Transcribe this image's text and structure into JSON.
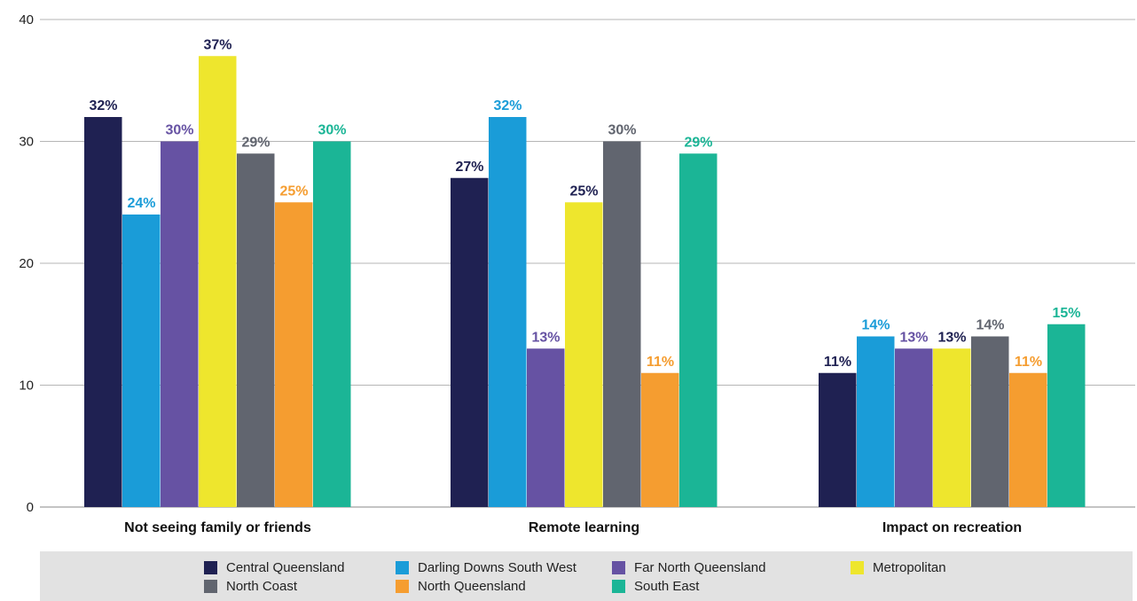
{
  "chart_data": {
    "type": "bar",
    "categories": [
      "Not seeing family or friends",
      "Remote learning",
      "Impact on recreation"
    ],
    "ylim": [
      0,
      40
    ],
    "yticks": [
      0,
      10,
      20,
      30,
      40
    ],
    "grid": true,
    "legend_position": "bottom",
    "value_suffix": "%",
    "series": [
      {
        "name": "Central Queensland",
        "color": "#1f2152",
        "values": [
          32,
          27,
          11
        ]
      },
      {
        "name": "Darling Downs South West",
        "color": "#1a9cd8",
        "values": [
          24,
          32,
          14
        ]
      },
      {
        "name": "Far North Queensland",
        "color": "#6652a3",
        "values": [
          30,
          13,
          13
        ]
      },
      {
        "name": "Metropolitan",
        "color": "#eee62d",
        "values": [
          37,
          25,
          13
        ]
      },
      {
        "name": "North Coast",
        "color": "#61656f",
        "values": [
          29,
          30,
          14
        ]
      },
      {
        "name": "North Queensland",
        "color": "#f59d30",
        "values": [
          25,
          11,
          11
        ]
      },
      {
        "name": "South East",
        "color": "#1bb596",
        "values": [
          30,
          29,
          15
        ]
      }
    ],
    "label_colors": [
      "#1f2152",
      "#1a9cd8",
      "#6652a3",
      "#1f2152",
      "#61656f",
      "#f59d30",
      "#1bb596"
    ]
  }
}
